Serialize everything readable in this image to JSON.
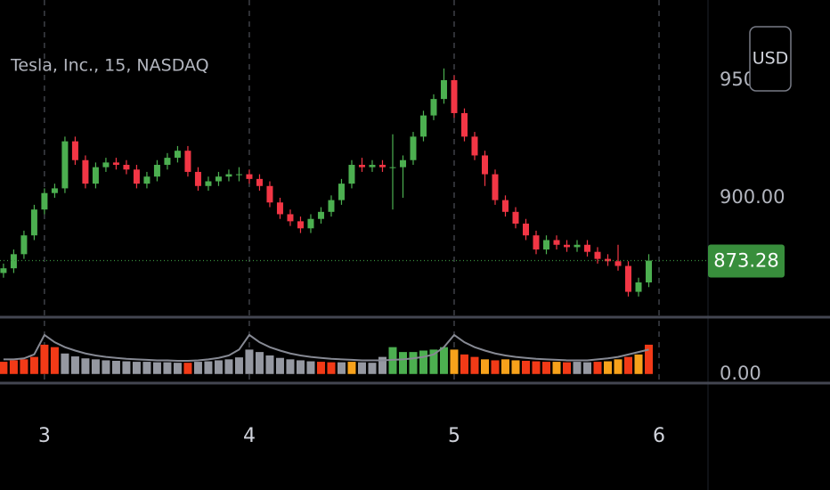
{
  "chart_data": [
    {
      "type": "candlestick",
      "title": "Tesla, Inc., 15, NASDAQ",
      "currency": "USD",
      "x": [
        2.8,
        2.85,
        2.9,
        2.95,
        3.0,
        3.05,
        3.1,
        3.15,
        3.2,
        3.25,
        3.3,
        3.35,
        3.4,
        3.45,
        3.5,
        3.55,
        3.6,
        3.65,
        3.7,
        3.75,
        3.8,
        3.85,
        3.9,
        3.95,
        4.0,
        4.05,
        4.1,
        4.15,
        4.2,
        4.25,
        4.3,
        4.35,
        4.4,
        4.45,
        4.5,
        4.55,
        4.6,
        4.65,
        4.7,
        4.75,
        4.8,
        4.85,
        4.9,
        4.95,
        5.0,
        5.05,
        5.1,
        5.15,
        5.2,
        5.25,
        5.3,
        5.35,
        5.4,
        5.45,
        5.5,
        5.55,
        5.6,
        5.65,
        5.7,
        5.75,
        5.8,
        5.85,
        5.9,
        5.95
      ],
      "open": [
        868,
        870,
        876,
        884,
        895,
        902,
        904,
        924,
        916,
        906,
        913,
        915,
        914,
        912,
        906,
        909,
        914,
        917,
        920,
        911,
        905,
        907,
        909,
        910,
        910,
        908,
        905,
        898,
        893,
        890,
        887,
        891,
        894,
        899,
        906,
        914,
        913,
        914,
        913,
        913,
        916,
        926,
        935,
        942,
        950,
        936,
        926,
        918,
        910,
        899,
        894,
        889,
        884,
        878,
        882,
        880,
        879,
        880,
        877,
        874,
        873,
        871,
        860,
        864
      ],
      "high": [
        872,
        878,
        886,
        897,
        904,
        906,
        926,
        926,
        918,
        915,
        917,
        917,
        916,
        914,
        911,
        916,
        919,
        922,
        922,
        913,
        909,
        911,
        912,
        913,
        912,
        910,
        907,
        900,
        895,
        892,
        893,
        896,
        901,
        908,
        916,
        917,
        916,
        916,
        927,
        918,
        928,
        937,
        944,
        955,
        952,
        938,
        928,
        920,
        912,
        901,
        896,
        891,
        886,
        884,
        884,
        882,
        882,
        882,
        879,
        876,
        880,
        873,
        866,
        876
      ],
      "low": [
        866,
        868,
        874,
        882,
        893,
        900,
        902,
        914,
        904,
        904,
        911,
        912,
        910,
        904,
        904,
        907,
        912,
        915,
        909,
        903,
        903,
        905,
        907,
        907,
        906,
        903,
        896,
        891,
        888,
        885,
        885,
        889,
        892,
        897,
        904,
        911,
        911,
        911,
        895,
        900,
        914,
        924,
        933,
        940,
        934,
        924,
        916,
        905,
        897,
        892,
        887,
        882,
        876,
        876,
        878,
        877,
        877,
        875,
        872,
        871,
        869,
        858,
        858,
        862
      ],
      "close": [
        870,
        876,
        884,
        895,
        902,
        904,
        924,
        916,
        906,
        913,
        915,
        914,
        912,
        906,
        909,
        914,
        917,
        920,
        911,
        905,
        907,
        909,
        910,
        910,
        908,
        905,
        898,
        893,
        890,
        887,
        891,
        894,
        899,
        906,
        914,
        913,
        914,
        913,
        913,
        916,
        926,
        935,
        942,
        950,
        936,
        926,
        918,
        910,
        899,
        894,
        889,
        884,
        878,
        882,
        880,
        879,
        880,
        877,
        874,
        873,
        871,
        860,
        864,
        873.28
      ],
      "up_color": "#4caf50",
      "down_color": "#f23645",
      "last_price": 873.28,
      "last_price_color": "#388e3c",
      "xlim": [
        2.783,
        6.239
      ],
      "xticks": [
        3,
        4,
        5,
        6
      ],
      "ylim": [
        849.6,
        984.1
      ],
      "yticks": [
        {
          "value": 950,
          "label": "950.00"
        },
        {
          "value": 900,
          "label": "900.00"
        }
      ]
    },
    {
      "type": "indicator",
      "series": [
        {
          "type": "bar",
          "values": [
            0.25,
            0.28,
            0.3,
            0.35,
            0.6,
            0.55,
            0.42,
            0.36,
            0.32,
            0.3,
            0.28,
            0.27,
            0.26,
            0.25,
            0.25,
            0.24,
            0.24,
            0.23,
            0.23,
            0.25,
            0.26,
            0.28,
            0.3,
            0.34,
            0.5,
            0.45,
            0.38,
            0.33,
            0.3,
            0.28,
            0.26,
            0.25,
            0.24,
            0.24,
            0.25,
            0.24,
            0.23,
            0.35,
            0.55,
            0.45,
            0.45,
            0.48,
            0.5,
            0.55,
            0.5,
            0.4,
            0.35,
            0.3,
            0.28,
            0.3,
            0.28,
            0.27,
            0.26,
            0.25,
            0.25,
            0.24,
            0.25,
            0.24,
            0.25,
            0.26,
            0.3,
            0.35,
            0.4,
            0.6
          ],
          "colors": [
            "#f23a17",
            "#f23a17",
            "#f23a17",
            "#f23a17",
            "#f23a17",
            "#f23a17",
            "#9598a1",
            "#9598a1",
            "#9598a1",
            "#9598a1",
            "#9598a1",
            "#9598a1",
            "#9598a1",
            "#9598a1",
            "#9598a1",
            "#9598a1",
            "#9598a1",
            "#9598a1",
            "#f23a17",
            "#9598a1",
            "#9598a1",
            "#9598a1",
            "#9598a1",
            "#9598a1",
            "#9598a1",
            "#9598a1",
            "#9598a1",
            "#9598a1",
            "#9598a1",
            "#9598a1",
            "#9598a1",
            "#f23a17",
            "#f23a17",
            "#9598a1",
            "#f7a21b",
            "#9598a1",
            "#9598a1",
            "#9598a1",
            "#4caf50",
            "#4caf50",
            "#4caf50",
            "#4caf50",
            "#4caf50",
            "#4caf50",
            "#f7a21b",
            "#f23a17",
            "#f23a17",
            "#f7a21b",
            "#f23a17",
            "#f7a21b",
            "#f7a21b",
            "#f23a17",
            "#f23a17",
            "#f23a17",
            "#f7a21b",
            "#f23a17",
            "#9598a1",
            "#9598a1",
            "#f23a17",
            "#f7a21b",
            "#f7a21b",
            "#f23a17",
            "#f7a21b",
            "#f23a17"
          ]
        },
        {
          "type": "line",
          "color": "#868993",
          "values": [
            0.3,
            0.3,
            0.32,
            0.4,
            0.8,
            0.65,
            0.55,
            0.48,
            0.42,
            0.38,
            0.35,
            0.33,
            0.31,
            0.3,
            0.29,
            0.28,
            0.28,
            0.27,
            0.27,
            0.28,
            0.3,
            0.33,
            0.38,
            0.5,
            0.8,
            0.65,
            0.55,
            0.48,
            0.42,
            0.38,
            0.35,
            0.33,
            0.31,
            0.3,
            0.29,
            0.28,
            0.28,
            0.28,
            0.29,
            0.3,
            0.32,
            0.35,
            0.4,
            0.55,
            0.8,
            0.65,
            0.55,
            0.48,
            0.42,
            0.38,
            0.35,
            0.33,
            0.31,
            0.3,
            0.29,
            0.28,
            0.28,
            0.28,
            0.3,
            0.32,
            0.35,
            0.4,
            0.45,
            0.5
          ]
        }
      ],
      "ylim": [
        -0.15,
        1
      ],
      "yticks": [
        {
          "value": 0,
          "label": "0.00"
        }
      ]
    }
  ]
}
